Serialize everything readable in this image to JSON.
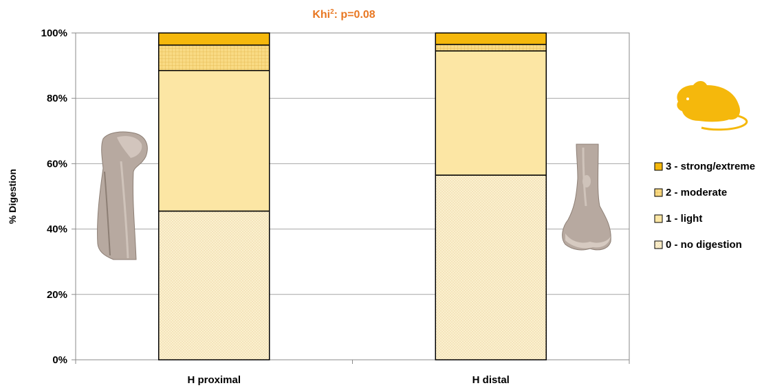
{
  "chart_data": {
    "type": "bar",
    "stacked": true,
    "title_prefix": "Khi",
    "title_sup": "2",
    "title_suffix": ": p=0.08",
    "ylabel": "% Digestion",
    "xlabel": "",
    "ylim": [
      0,
      100
    ],
    "yticks": [
      0,
      20,
      40,
      60,
      80,
      100
    ],
    "ytick_labels": [
      "0%",
      "20%",
      "40%",
      "60%",
      "80%",
      "100%"
    ],
    "categories": [
      "H proximal",
      "H distal"
    ],
    "series": [
      {
        "name": "0 - no digestion",
        "values": [
          45.5,
          56.5
        ],
        "color": "#FBF0CF",
        "pattern": "dots"
      },
      {
        "name": "1 - light",
        "values": [
          43.0,
          38.0
        ],
        "color": "#FCE6A4",
        "pattern": "none"
      },
      {
        "name": "2 - moderate",
        "values": [
          7.8,
          2.0
        ],
        "color": "#F9DA84",
        "pattern": "grid"
      },
      {
        "name": "3 - strong/extreme",
        "values": [
          3.7,
          3.5
        ],
        "color": "#F5B80C",
        "pattern": "none"
      }
    ],
    "legend_position": "right",
    "legend_order": [
      "3 - strong/extreme",
      "2 - moderate",
      "1 - light",
      "0 - no digestion"
    ],
    "grid": true,
    "colors": {
      "title": "#E87722",
      "rat_icon": "#F5B80C",
      "grid": "#A6A6A6"
    },
    "icons": [
      "humerus-proximal-image",
      "humerus-distal-image",
      "rat-icon"
    ]
  }
}
